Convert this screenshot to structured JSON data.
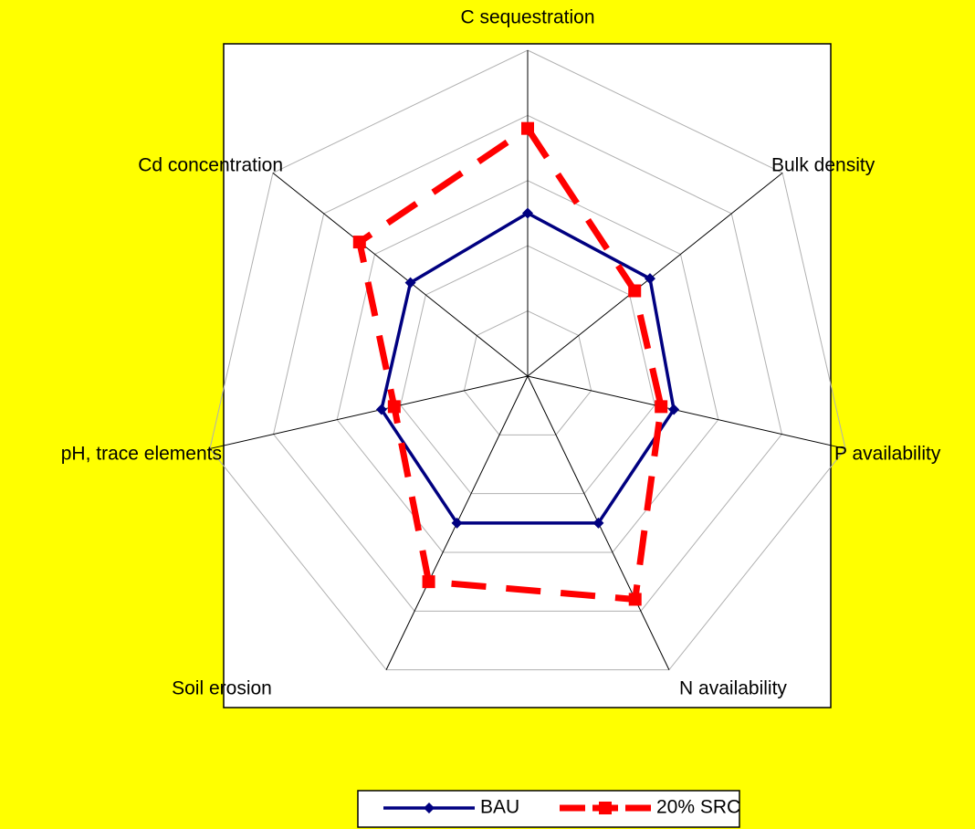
{
  "chart_data": {
    "type": "radar",
    "categories": [
      "C sequestration",
      "Bulk density",
      "P availability",
      "N availability",
      "Soil erosion",
      "pH, trace elements",
      "Cd concentration"
    ],
    "series": [
      {
        "name": "BAU",
        "color": "#000080",
        "values": [
          2.5,
          2.4,
          2.3,
          2.5,
          2.5,
          2.3,
          2.3
        ]
      },
      {
        "name": "20% SRC",
        "color": "#ff0000",
        "values": [
          3.8,
          2.1,
          2.1,
          3.8,
          3.5,
          2.1,
          3.3
        ]
      }
    ],
    "rlim": [
      0,
      5
    ],
    "rticks": [
      1,
      2,
      3,
      4,
      5
    ],
    "grid": true,
    "legend": "bottom"
  }
}
